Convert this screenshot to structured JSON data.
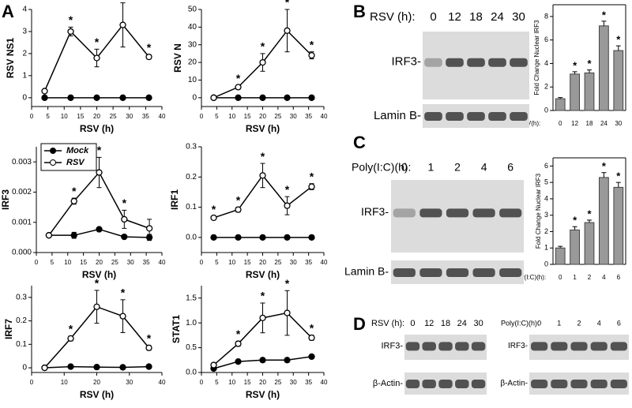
{
  "chart_data": [
    {
      "type": "line",
      "ylabel": "RSV NS1",
      "xlabel": "RSV (h)",
      "x": [
        4,
        12,
        20,
        28,
        36
      ],
      "xlim": [
        0,
        40
      ],
      "xticks": [
        0,
        5,
        10,
        15,
        20,
        25,
        30,
        35,
        40
      ],
      "ylim": [
        -0.4,
        4
      ],
      "yticks": [
        0,
        1,
        2,
        3,
        4
      ],
      "series": [
        {
          "name": "Mock",
          "color": "#000000",
          "marker_fill": "#000000",
          "values": [
            0,
            0,
            0,
            0,
            0
          ]
        },
        {
          "name": "RSV",
          "color": "#000000",
          "marker_fill": "#ffffff",
          "values": [
            0.3,
            3.0,
            1.8,
            3.3,
            1.85
          ],
          "errors": [
            0,
            0.2,
            0.4,
            1.0,
            0.1
          ],
          "significance": [
            null,
            "*",
            "*",
            "*",
            "*"
          ]
        }
      ]
    },
    {
      "type": "line",
      "ylabel": "RSV N",
      "xlabel": "RSV (h)",
      "x": [
        4,
        12,
        20,
        28,
        36
      ],
      "xlim": [
        0,
        40
      ],
      "xticks": [
        0,
        5,
        10,
        15,
        20,
        25,
        30,
        35,
        40
      ],
      "ylim": [
        -5,
        50
      ],
      "yticks": [
        0,
        10,
        20,
        30,
        40,
        50
      ],
      "series": [
        {
          "name": "Mock",
          "color": "#000000",
          "marker_fill": "#000000",
          "values": [
            0,
            0,
            0,
            0,
            0
          ]
        },
        {
          "name": "RSV",
          "color": "#000000",
          "marker_fill": "#ffffff",
          "values": [
            0,
            6,
            20,
            38,
            24
          ],
          "errors": [
            0,
            1,
            5,
            12,
            2
          ],
          "significance": [
            null,
            "*",
            "*",
            "*",
            "*"
          ]
        }
      ]
    },
    {
      "type": "line",
      "ylabel": "IRF3",
      "xlabel": "RSV (h)",
      "x": [
        4,
        12,
        20,
        28,
        36
      ],
      "xlim": [
        0,
        40
      ],
      "xticks": [
        0,
        5,
        10,
        15,
        20,
        25,
        30,
        35,
        40
      ],
      "ylim": [
        0,
        0.0035
      ],
      "yticks": [
        {
          "value": 0,
          "label": "0.000"
        },
        {
          "value": 0.001,
          "label": "0.001"
        },
        {
          "value": 0.002,
          "label": "0.002"
        },
        {
          "value": 0.003,
          "label": "0.003"
        }
      ],
      "legend": "upper left",
      "series": [
        {
          "name": "Mock",
          "color": "#000000",
          "marker_fill": "#000000",
          "values": [
            0.00057,
            0.00057,
            0.00077,
            0.00052,
            0.0005
          ],
          "errors": [
            0,
            0.0001,
            3e-05,
            5e-05,
            0.0001
          ]
        },
        {
          "name": "RSV",
          "color": "#000000",
          "marker_fill": "#ffffff",
          "values": [
            0.00057,
            0.0017,
            0.00265,
            0.0011,
            0.0008
          ],
          "errors": [
            0,
            0.0001,
            0.0005,
            0.0003,
            0.0003
          ],
          "significance": [
            null,
            "*",
            "*",
            "*",
            null
          ]
        }
      ]
    },
    {
      "type": "line",
      "ylabel": "IRF1",
      "xlabel": "RSV (h)",
      "x": [
        4,
        12,
        20,
        28,
        36
      ],
      "xlim": [
        0,
        40
      ],
      "xticks": [
        0,
        5,
        10,
        15,
        20,
        25,
        30,
        35,
        40
      ],
      "ylim": [
        -0.05,
        0.3
      ],
      "yticks": [
        {
          "value": 0,
          "label": "0.0"
        },
        0.1,
        0.2,
        0.3
      ],
      "series": [
        {
          "name": "Mock",
          "color": "#000000",
          "marker_fill": "#000000",
          "values": [
            0,
            0,
            0,
            0,
            0
          ]
        },
        {
          "name": "RSV",
          "color": "#000000",
          "marker_fill": "#ffffff",
          "values": [
            0.065,
            0.092,
            0.205,
            0.105,
            0.168
          ],
          "errors": [
            0.005,
            0.008,
            0.04,
            0.03,
            0.01
          ],
          "significance": [
            "*",
            "*",
            "*",
            "*",
            "*"
          ]
        }
      ]
    },
    {
      "type": "line",
      "ylabel": "IRF7",
      "xlabel": "RSV (h)",
      "x": [
        4,
        12,
        20,
        28,
        36
      ],
      "xlim": [
        0,
        40
      ],
      "xticks": [
        0,
        10,
        20,
        30,
        40
      ],
      "ylim": [
        -0.02,
        0.35
      ],
      "yticks": [
        0,
        0.1,
        0.2,
        0.3
      ],
      "series": [
        {
          "name": "Mock",
          "color": "#000000",
          "marker_fill": "#000000",
          "values": [
            0,
            0.005,
            0.003,
            0.002,
            0.005
          ]
        },
        {
          "name": "RSV",
          "color": "#000000",
          "marker_fill": "#ffffff",
          "values": [
            0,
            0.125,
            0.26,
            0.22,
            0.085
          ],
          "errors": [
            0,
            0.01,
            0.07,
            0.07,
            0.01
          ],
          "significance": [
            null,
            "*",
            "*",
            "*",
            "*"
          ]
        }
      ]
    },
    {
      "type": "line",
      "ylabel": "STAT1",
      "xlabel": "RSV (h)",
      "x": [
        4,
        12,
        20,
        28,
        36
      ],
      "xlim": [
        0,
        40
      ],
      "xticks": [
        0,
        5,
        10,
        15,
        20,
        25,
        30,
        35,
        40
      ],
      "ylim": [
        0,
        1.75
      ],
      "yticks": [
        {
          "value": 0,
          "label": "0.0"
        },
        0.5,
        {
          "value": 1,
          "label": "1.0"
        },
        1.5
      ],
      "series": [
        {
          "name": "Mock",
          "color": "#000000",
          "marker_fill": "#000000",
          "values": [
            0.08,
            0.22,
            0.25,
            0.25,
            0.32
          ]
        },
        {
          "name": "RSV",
          "color": "#000000",
          "marker_fill": "#ffffff",
          "values": [
            0.15,
            0.58,
            1.1,
            1.2,
            0.7
          ],
          "errors": [
            0,
            0.05,
            0.3,
            0.45,
            0.05
          ],
          "significance": [
            null,
            "*",
            "*",
            "*",
            "*"
          ]
        }
      ]
    },
    {
      "type": "bar",
      "ylabel": "Fold Change Nuclear IRF3",
      "xlabel": "RSV(h):",
      "categories": [
        "0",
        "12",
        "18",
        "24",
        "30"
      ],
      "color": "#999999",
      "values": [
        1,
        3.1,
        3.2,
        7.2,
        5.1
      ],
      "errors": [
        0.1,
        0.2,
        0.25,
        0.4,
        0.4
      ],
      "significance": [
        null,
        "*",
        "*",
        "*",
        "*"
      ],
      "ylim": [
        0,
        9
      ],
      "yticks": [
        0,
        2,
        4,
        6,
        8
      ]
    },
    {
      "type": "bar",
      "ylabel": "Fold Change Nuclear IRF3",
      "xlabel": "poly(I:C)(h):",
      "categories": [
        "0",
        "1",
        "2",
        "4",
        "6"
      ],
      "color": "#999999",
      "values": [
        1,
        2.1,
        2.55,
        5.3,
        4.7
      ],
      "errors": [
        0.1,
        0.2,
        0.15,
        0.3,
        0.3
      ],
      "significance": [
        null,
        "*",
        "*",
        "*",
        "*"
      ],
      "ylim": [
        0,
        6.5
      ],
      "yticks": [
        0,
        1,
        2,
        3,
        4,
        5,
        6
      ]
    }
  ],
  "figure": {
    "panel_labels": [
      "A",
      "B",
      "C",
      "D"
    ],
    "blots": [
      {
        "header": "RSV (h):",
        "lanes": [
          "0",
          "12",
          "18",
          "24",
          "30"
        ],
        "rows": [
          "IRF3-",
          "Lamin B-"
        ]
      },
      {
        "header": "Poly(I:C)(h):",
        "lanes": [
          "0",
          "1",
          "2",
          "4",
          "6"
        ],
        "rows": [
          "IRF3-",
          "Lamin B-"
        ]
      },
      {
        "header": "RSV (h):",
        "lanes": [
          "0",
          "12",
          "18",
          "24",
          "30"
        ],
        "rows": [
          "IRF3-",
          "β-Actin-"
        ]
      },
      {
        "header": "Poly(I:C)(h):",
        "lanes": [
          "0",
          "1",
          "2",
          "4",
          "6"
        ],
        "rows": [
          "IRF3-",
          "β-Actin-"
        ]
      }
    ]
  }
}
